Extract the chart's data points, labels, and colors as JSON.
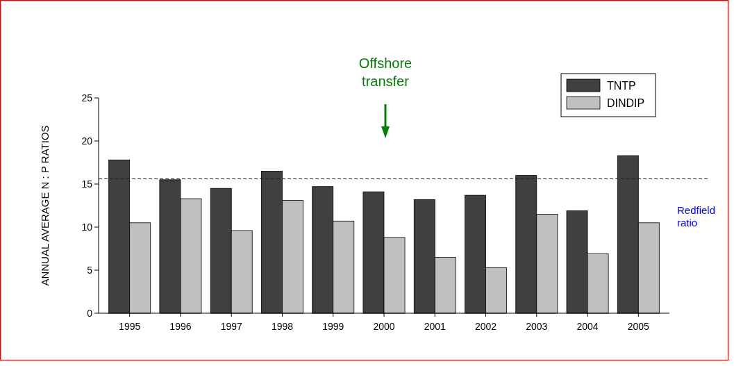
{
  "chart_data": {
    "type": "bar",
    "ylabel": "ANNUAL AVERAGE N : P RATIOS",
    "categories": [
      "1995",
      "1996",
      "1997",
      "1998",
      "1999",
      "2000",
      "2001",
      "2002",
      "2003",
      "2004",
      "2005"
    ],
    "series": [
      {
        "name": "TNTP",
        "color": "#404040",
        "values": [
          17.8,
          15.5,
          14.5,
          16.5,
          14.7,
          14.1,
          13.2,
          13.7,
          16.0,
          11.9,
          18.3
        ]
      },
      {
        "name": "DINDIP",
        "color": "#c0c0c0",
        "values": [
          10.5,
          13.3,
          9.6,
          13.1,
          10.7,
          8.8,
          6.5,
          5.3,
          11.5,
          6.9,
          10.5
        ]
      }
    ],
    "ylim": [
      0,
      25
    ],
    "yticks": [
      0,
      5,
      10,
      15,
      20,
      25
    ],
    "grid": false,
    "legend": "top right",
    "ref_lines": [
      {
        "axis": "y",
        "value": 15.6,
        "label": "Redfield ratio",
        "color": "#0000ff",
        "line_style": "dashed"
      }
    ],
    "annotations": [
      "Offshore transfer"
    ]
  }
}
